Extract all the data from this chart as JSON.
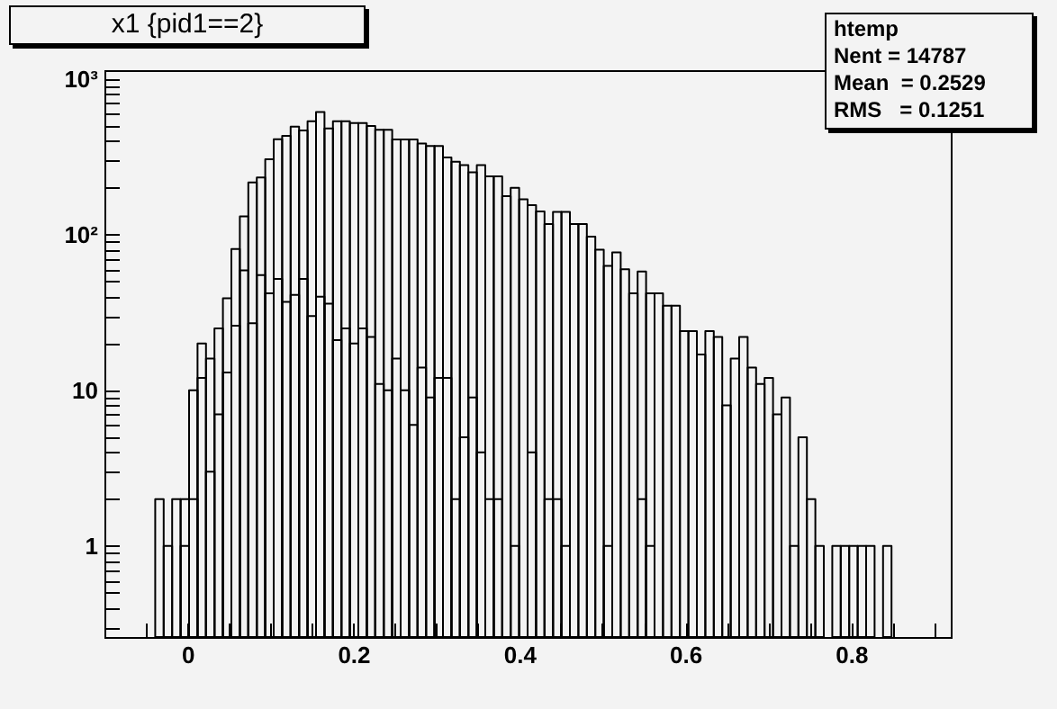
{
  "chart_data": {
    "type": "histogram",
    "title": "x1 {pid1==2}",
    "annotations": [
      "htemp",
      "Nent = 14787",
      "Mean  = 0.2529",
      "RMS   = 0.1251"
    ],
    "bins": [
      -0.0388,
      -0.0286,
      -0.0184,
      -0.0082,
      0.002,
      0.0122,
      0.0224,
      0.0326,
      0.0428,
      0.053,
      0.0632,
      0.0734,
      0.0836,
      0.0938,
      0.104,
      0.1142,
      0.1244,
      0.1346,
      0.1448,
      0.155,
      0.1652,
      0.1754,
      0.1856,
      0.1958,
      0.206,
      0.2162,
      0.2264,
      0.2366,
      0.2468,
      0.257,
      0.2672,
      0.2774,
      0.2876,
      0.2978,
      0.308,
      0.3182,
      0.3284,
      0.3386,
      0.3488,
      0.359,
      0.3692,
      0.3794,
      0.3896,
      0.3998,
      0.41,
      0.4202,
      0.4304,
      0.4406,
      0.4508,
      0.461,
      0.4712,
      0.4814,
      0.4916,
      0.5018,
      0.512,
      0.5222,
      0.5324,
      0.5426,
      0.5528,
      0.563,
      0.5732,
      0.5834,
      0.5936,
      0.6038,
      0.614,
      0.6242,
      0.6344,
      0.6446,
      0.6548,
      0.665,
      0.6752,
      0.6854,
      0.6956,
      0.7058,
      0.716,
      0.7262,
      0.7364,
      0.7466,
      0.7568,
      0.767,
      0.7772,
      0.7874,
      0.7976,
      0.8078,
      0.818,
      0.8282,
      0.8384,
      0.8486
    ],
    "series": [
      {
        "color": "#000000",
        "values": [
          null,
          1,
          2,
          2,
          10,
          20,
          16,
          25,
          39,
          81,
          131,
          217,
          233,
          305,
          410,
          432,
          494,
          468,
          535,
          613,
          481,
          535,
          535,
          521,
          521,
          499,
          472,
          472,
          409,
          409,
          409,
          385,
          371,
          371,
          313,
          294,
          280,
          252,
          280,
          237,
          237,
          177,
          200,
          169,
          155,
          141,
          117,
          140,
          140,
          117,
          117,
          97,
          80,
          63,
          77,
          60,
          42,
          58,
          42,
          42,
          35,
          35,
          24,
          24,
          17,
          24,
          22,
          8,
          16,
          22,
          14,
          11,
          12,
          7,
          9,
          1,
          5,
          2,
          1,
          null,
          1,
          1,
          1,
          1,
          1,
          null,
          1
        ]
      },
      {
        "color": "#000000",
        "values": [
          2,
          null,
          null,
          1,
          2,
          12,
          3,
          7,
          13,
          26,
          59,
          27,
          55,
          42,
          52,
          37,
          41,
          52,
          30,
          40,
          36,
          21,
          25,
          20,
          25,
          22,
          11,
          10,
          16,
          10,
          6,
          14,
          9,
          12,
          12,
          2,
          5,
          9,
          4,
          2,
          2,
          null,
          1,
          null,
          4,
          null,
          2,
          2,
          1,
          null,
          null,
          null,
          null,
          1,
          null,
          null,
          null,
          2,
          1,
          null,
          null,
          null,
          null,
          null,
          null,
          null,
          null,
          null,
          null,
          null,
          null,
          null,
          null,
          null,
          null,
          null,
          null,
          null,
          null,
          null,
          null,
          null,
          null,
          null,
          null,
          null,
          null
        ]
      }
    ],
    "log": "y",
    "xlim": [
      -0.1,
      0.92
    ],
    "xticks": [
      {
        "value": -0.05,
        "label": null
      },
      0,
      {
        "value": 0.05,
        "label": null
      },
      {
        "value": 0.1,
        "label": null
      },
      {
        "value": 0.15,
        "label": null
      },
      0.2,
      {
        "value": 0.25,
        "label": null
      },
      {
        "value": 0.3,
        "label": null
      },
      {
        "value": 0.35,
        "label": null
      },
      0.4,
      {
        "value": 0.45,
        "label": null
      },
      {
        "value": 0.5,
        "label": null
      },
      {
        "value": 0.55,
        "label": null
      },
      0.6,
      {
        "value": 0.65,
        "label": null
      },
      {
        "value": 0.7,
        "label": null
      },
      {
        "value": 0.75,
        "label": null
      },
      0.8,
      {
        "value": 0.85,
        "label": null
      },
      {
        "value": 0.9,
        "label": null
      }
    ],
    "ylim": [
      0.26,
      1140
    ],
    "yticks": [
      {
        "value": 0.3,
        "label": null
      },
      {
        "value": 0.4,
        "label": null
      },
      {
        "value": 0.5,
        "label": null
      },
      {
        "value": 0.6,
        "label": null
      },
      {
        "value": 0.7,
        "label": null
      },
      {
        "value": 0.8,
        "label": null
      },
      {
        "value": 0.9,
        "label": null
      },
      1,
      {
        "value": 2,
        "label": null
      },
      {
        "value": 3,
        "label": null
      },
      {
        "value": 4,
        "label": null
      },
      {
        "value": 5,
        "label": null
      },
      {
        "value": 6,
        "label": null
      },
      {
        "value": 7,
        "label": null
      },
      {
        "value": 8,
        "label": null
      },
      {
        "value": 9,
        "label": null
      },
      10,
      {
        "value": 20,
        "label": null
      },
      {
        "value": 30,
        "label": null
      },
      {
        "value": 40,
        "label": null
      },
      {
        "value": 50,
        "label": null
      },
      {
        "value": 60,
        "label": null
      },
      {
        "value": 70,
        "label": null
      },
      {
        "value": 80,
        "label": null
      },
      {
        "value": 90,
        "label": null
      },
      {
        "value": 100,
        "label": "10²"
      },
      {
        "value": 200,
        "label": null
      },
      {
        "value": 300,
        "label": null
      },
      {
        "value": 400,
        "label": null
      },
      {
        "value": 500,
        "label": null
      },
      {
        "value": 600,
        "label": null
      },
      {
        "value": 700,
        "label": null
      },
      {
        "value": 800,
        "label": null
      },
      {
        "value": 900,
        "label": null
      },
      {
        "value": 1000,
        "label": "10³"
      }
    ]
  }
}
